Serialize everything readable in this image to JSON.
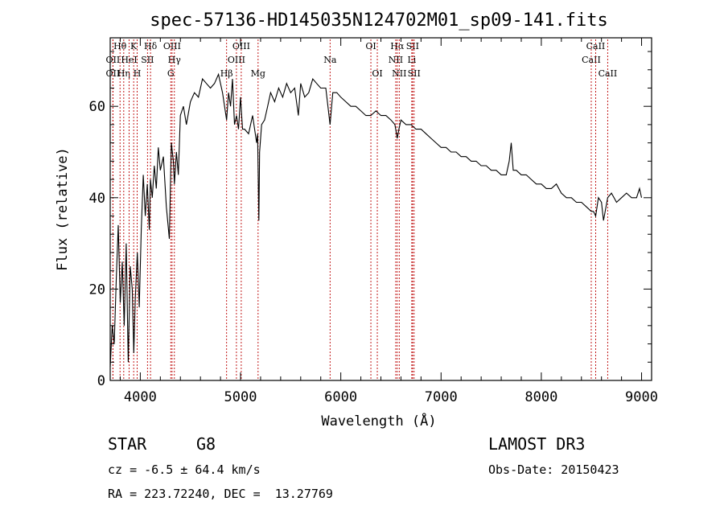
{
  "chart_data": {
    "type": "line",
    "title": "spec-57136-HD145035N124702M01_sp09-141.fits",
    "xlabel": "Wavelength (Å)",
    "ylabel": "Flux (relative)",
    "xlim": [
      3700,
      9100
    ],
    "ylim": [
      0,
      75
    ],
    "xticks": [
      4000,
      5000,
      6000,
      7000,
      8000,
      9000
    ],
    "yticks": [
      0,
      20,
      40,
      60
    ],
    "series": [
      {
        "name": "spectrum",
        "x": [
          3700,
          3720,
          3740,
          3760,
          3780,
          3800,
          3820,
          3840,
          3860,
          3880,
          3900,
          3920,
          3935,
          3950,
          3970,
          3990,
          4010,
          4030,
          4050,
          4070,
          4090,
          4101,
          4120,
          4140,
          4160,
          4180,
          4200,
          4230,
          4260,
          4290,
          4310,
          4330,
          4340,
          4360,
          4380,
          4400,
          4430,
          4460,
          4500,
          4540,
          4580,
          4620,
          4660,
          4700,
          4740,
          4780,
          4820,
          4861,
          4880,
          4900,
          4920,
          4940,
          4960,
          4980,
          5000,
          5020,
          5040,
          5080,
          5120,
          5160,
          5170,
          5183,
          5190,
          5210,
          5240,
          5270,
          5300,
          5340,
          5380,
          5420,
          5460,
          5500,
          5540,
          5577,
          5600,
          5640,
          5680,
          5720,
          5760,
          5800,
          5850,
          5893,
          5920,
          5960,
          6000,
          6050,
          6100,
          6150,
          6200,
          6250,
          6300,
          6350,
          6400,
          6450,
          6500,
          6540,
          6563,
          6580,
          6600,
          6650,
          6700,
          6750,
          6800,
          6850,
          6900,
          6950,
          7000,
          7050,
          7100,
          7150,
          7200,
          7250,
          7300,
          7350,
          7400,
          7450,
          7500,
          7550,
          7600,
          7650,
          7680,
          7700,
          7720,
          7750,
          7800,
          7850,
          7900,
          7950,
          8000,
          8050,
          8100,
          8150,
          8200,
          8250,
          8300,
          8350,
          8400,
          8450,
          8498,
          8520,
          8542,
          8570,
          8600,
          8620,
          8662,
          8700,
          8750,
          8800,
          8850,
          8900,
          8950,
          8980,
          9000
        ],
        "values": [
          3,
          12,
          8,
          22,
          34,
          17,
          26,
          12,
          30,
          4,
          25,
          20,
          6,
          18,
          28,
          16,
          33,
          45,
          36,
          43,
          33,
          44,
          40,
          47,
          42,
          51,
          46,
          49,
          38,
          31,
          52,
          48,
          43,
          50,
          45,
          58,
          60,
          56,
          61,
          63,
          62,
          66,
          65,
          64,
          65,
          67,
          63,
          57,
          63,
          60,
          66,
          56,
          58,
          55,
          62,
          55,
          55,
          54,
          58,
          52,
          54,
          35,
          50,
          56,
          57,
          60,
          63,
          61,
          64,
          62,
          65,
          63,
          64,
          58,
          65,
          62,
          63,
          66,
          65,
          64,
          64,
          56,
          63,
          63,
          62,
          61,
          60,
          60,
          59,
          58,
          58,
          59,
          58,
          58,
          57,
          56,
          53,
          55,
          57,
          56,
          56,
          55,
          55,
          54,
          53,
          52,
          51,
          51,
          50,
          50,
          49,
          49,
          48,
          48,
          47,
          47,
          46,
          46,
          45,
          45,
          48,
          52,
          46,
          46,
          45,
          45,
          44,
          43,
          43,
          42,
          42,
          43,
          41,
          40,
          40,
          39,
          39,
          38,
          37,
          37,
          36,
          40,
          39,
          35,
          40,
          41,
          39,
          40,
          41,
          40,
          40,
          42,
          40
        ]
      }
    ],
    "lines": [
      {
        "label": "OII",
        "wl": 3727,
        "row": 2
      },
      {
        "label": "OII",
        "wl": 3727,
        "row": 3
      },
      {
        "label": "Hθ",
        "wl": 3798,
        "row": 1
      },
      {
        "label": "Hη",
        "wl": 3835,
        "row": 3
      },
      {
        "label": "HeI",
        "wl": 3889,
        "row": 2
      },
      {
        "label": "K",
        "wl": 3934,
        "row": 1
      },
      {
        "label": "H",
        "wl": 3969,
        "row": 3
      },
      {
        "label": "SII",
        "wl": 4072,
        "row": 2
      },
      {
        "label": "Hδ",
        "wl": 4102,
        "row": 1
      },
      {
        "label": "OIII",
        "wl": 4317,
        "row": 1
      },
      {
        "label": "Hγ",
        "wl": 4340,
        "row": 2
      },
      {
        "label": "G",
        "wl": 4304,
        "row": 3
      },
      {
        "label": "Hβ",
        "wl": 4861,
        "row": 3
      },
      {
        "label": "OIII",
        "wl": 4959,
        "row": 2
      },
      {
        "label": "OIII",
        "wl": 5007,
        "row": 1
      },
      {
        "label": "Mg",
        "wl": 5175,
        "row": 3
      },
      {
        "label": "Na",
        "wl": 5893,
        "row": 2
      },
      {
        "label": "OI",
        "wl": 6300,
        "row": 1
      },
      {
        "label": "OI",
        "wl": 6364,
        "row": 3
      },
      {
        "label": "Hα",
        "wl": 6563,
        "row": 1
      },
      {
        "label": "NII",
        "wl": 6548,
        "row": 2
      },
      {
        "label": "NII",
        "wl": 6583,
        "row": 3
      },
      {
        "label": "SII",
        "wl": 6716,
        "row": 1
      },
      {
        "label": "Li",
        "wl": 6708,
        "row": 2
      },
      {
        "label": "SII",
        "wl": 6731,
        "row": 3
      },
      {
        "label": "CaII",
        "wl": 8498,
        "row": 2
      },
      {
        "label": "CaII",
        "wl": 8542,
        "row": 1
      },
      {
        "label": "CaII",
        "wl": 8662,
        "row": 3
      }
    ],
    "line_color": "#bb0000"
  },
  "info": {
    "object_type": "STAR",
    "subclass": "G8",
    "survey": "LAMOST DR3",
    "redshift": "cz = -6.5 ± 64.4 km/s",
    "obs_date": "Obs-Date: 20150423",
    "coords": "RA = 223.72240, DEC =  13.27769"
  }
}
